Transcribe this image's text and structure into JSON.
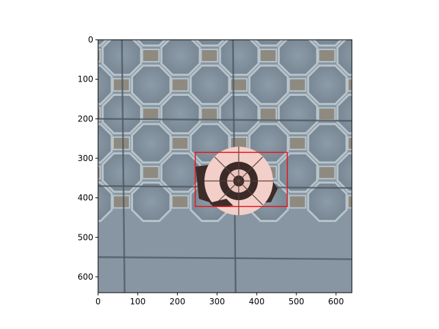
{
  "image": {
    "subject": "grey concrete paving tiles with octagon pattern and a round decorative drain cover",
    "colors": {
      "paving": "#8a9aa6",
      "octagon": "#7d8d9a",
      "joint": "#4f5963",
      "square_tile": "#8f8a80",
      "cover_light": "#f2cfc8",
      "cover_dark": "#3a2a28",
      "box": "#e8121b"
    }
  },
  "axes": {
    "x_ticks": [
      "0",
      "100",
      "200",
      "300",
      "400",
      "500",
      "600"
    ],
    "y_ticks": [
      "0",
      "100",
      "200",
      "300",
      "400",
      "500",
      "600"
    ],
    "xlim": [
      0,
      640
    ],
    "ylim": [
      0,
      640
    ],
    "y_inverted": true
  },
  "detection": {
    "box": {
      "x1": 245,
      "y1": 285,
      "x2": 477,
      "y2": 422
    }
  }
}
